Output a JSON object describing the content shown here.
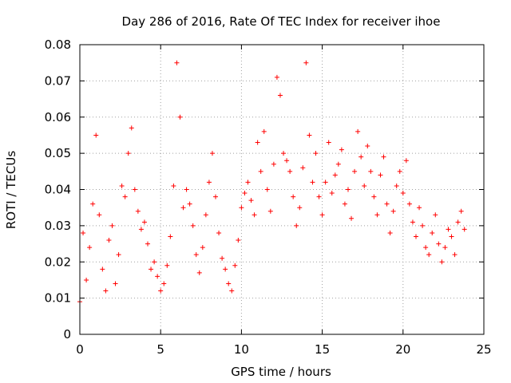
{
  "chart_data": {
    "type": "scatter",
    "title": "Day 286 of 2016, Rate Of TEC Index for receiver ihoe",
    "xlabel": "GPS time / hours",
    "ylabel": "ROTI / TECUs",
    "xlim": [
      0,
      25
    ],
    "ylim": [
      0,
      0.08
    ],
    "xticks": [
      0,
      5,
      10,
      15,
      20,
      25
    ],
    "yticks": [
      0,
      0.01,
      0.02,
      0.03,
      0.04,
      0.05,
      0.06,
      0.07,
      0.08
    ],
    "xtick_labels": [
      "0",
      "5",
      "10",
      "15",
      "20",
      "25"
    ],
    "ytick_labels": [
      "0",
      "0.01",
      "0.02",
      "0.03",
      "0.04",
      "0.05",
      "0.06",
      "0.07",
      "0.08"
    ],
    "grid": true,
    "marker": "+",
    "color": "#ff0000",
    "series": [
      {
        "name": "ROTI",
        "x": [
          0.0,
          0.2,
          0.4,
          0.6,
          0.8,
          1.0,
          1.2,
          1.4,
          1.6,
          1.8,
          2.0,
          2.2,
          2.4,
          2.6,
          2.8,
          3.0,
          3.2,
          3.4,
          3.6,
          3.8,
          4.0,
          4.2,
          4.4,
          4.6,
          4.8,
          5.0,
          5.2,
          5.4,
          5.6,
          5.8,
          6.0,
          6.2,
          6.4,
          6.6,
          6.8,
          7.0,
          7.2,
          7.4,
          7.6,
          7.8,
          8.0,
          8.2,
          8.4,
          8.6,
          8.8,
          9.0,
          9.2,
          9.4,
          9.6,
          9.8,
          10.0,
          10.2,
          10.4,
          10.6,
          10.8,
          11.0,
          11.2,
          11.4,
          11.6,
          11.8,
          12.0,
          12.2,
          12.4,
          12.6,
          12.8,
          13.0,
          13.2,
          13.4,
          13.6,
          13.8,
          14.0,
          14.2,
          14.4,
          14.6,
          14.8,
          15.0,
          15.2,
          15.4,
          15.6,
          15.8,
          16.0,
          16.2,
          16.4,
          16.6,
          16.8,
          17.0,
          17.2,
          17.4,
          17.6,
          17.8,
          18.0,
          18.2,
          18.4,
          18.6,
          18.8,
          19.0,
          19.2,
          19.4,
          19.6,
          19.8,
          20.0,
          20.2,
          20.4,
          20.6,
          20.8,
          21.0,
          21.2,
          21.4,
          21.6,
          21.8,
          22.0,
          22.2,
          22.4,
          22.6,
          22.8,
          23.0,
          23.2,
          23.4,
          23.6,
          23.8
        ],
        "y": [
          0.009,
          0.028,
          0.015,
          0.024,
          0.036,
          0.055,
          0.033,
          0.018,
          0.012,
          0.026,
          0.03,
          0.014,
          0.022,
          0.041,
          0.038,
          0.05,
          0.057,
          0.04,
          0.034,
          0.029,
          0.031,
          0.025,
          0.018,
          0.02,
          0.016,
          0.012,
          0.014,
          0.019,
          0.027,
          0.041,
          0.075,
          0.06,
          0.035,
          0.04,
          0.036,
          0.03,
          0.022,
          0.017,
          0.024,
          0.033,
          0.042,
          0.05,
          0.038,
          0.028,
          0.021,
          0.018,
          0.014,
          0.012,
          0.019,
          0.026,
          0.035,
          0.039,
          0.042,
          0.037,
          0.033,
          0.053,
          0.045,
          0.056,
          0.04,
          0.034,
          0.047,
          0.071,
          0.066,
          0.05,
          0.048,
          0.045,
          0.038,
          0.03,
          0.035,
          0.046,
          0.075,
          0.055,
          0.042,
          0.05,
          0.038,
          0.033,
          0.042,
          0.053,
          0.039,
          0.044,
          0.047,
          0.051,
          0.036,
          0.04,
          0.032,
          0.045,
          0.056,
          0.049,
          0.041,
          0.052,
          0.045,
          0.038,
          0.033,
          0.044,
          0.049,
          0.036,
          0.028,
          0.034,
          0.041,
          0.045,
          0.039,
          0.048,
          0.036,
          0.031,
          0.027,
          0.035,
          0.03,
          0.024,
          0.022,
          0.028,
          0.033,
          0.025,
          0.02,
          0.024,
          0.029,
          0.027,
          0.022,
          0.031,
          0.034,
          0.029
        ]
      }
    ]
  }
}
